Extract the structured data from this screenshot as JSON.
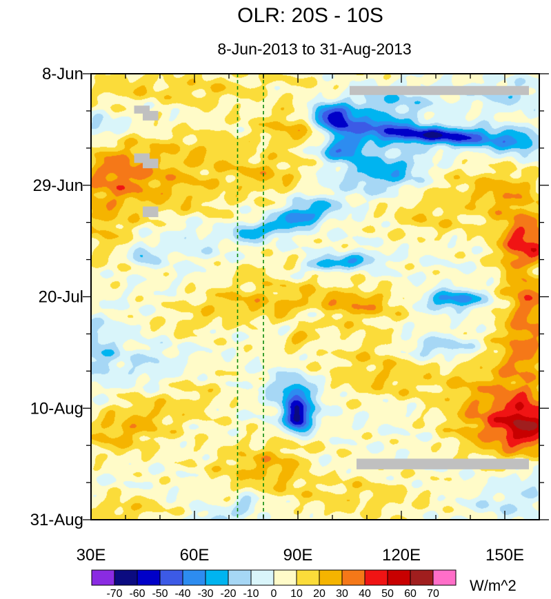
{
  "chart_data": {
    "type": "heatmap",
    "title": "OLR: 20S - 10S",
    "subtitle": "8-Jun-2013 to 31-Aug-2013",
    "x_axis": {
      "range": [
        30,
        160
      ],
      "ticks": [
        30,
        60,
        90,
        120,
        150
      ],
      "tick_labels": [
        "30E",
        "60E",
        "90E",
        "120E",
        "150E"
      ],
      "minor_step": 10
    },
    "y_axis": {
      "range_days_from_8_jun": [
        0,
        84
      ],
      "ticks": [
        0,
        21,
        42,
        63,
        84
      ],
      "tick_labels": [
        "8-Jun",
        "29-Jun",
        "20-Jul",
        "10-Aug",
        "31-Aug"
      ],
      "minor_step": 7,
      "direction": "time increases downward"
    },
    "reference_lines_lon": [
      72.5,
      80
    ],
    "colorbar": {
      "levels": [
        -70,
        -60,
        -50,
        -40,
        -30,
        -20,
        -10,
        0,
        10,
        20,
        30,
        40,
        50,
        60,
        70
      ],
      "tick_labels": [
        "-70",
        "-60",
        "-50",
        "-40",
        "-30",
        "-20",
        "-10",
        "0",
        "10",
        "20",
        "30",
        "40",
        "50",
        "60",
        "70"
      ],
      "colors": [
        "#8a2be2",
        "#0b0b80",
        "#0000c8",
        "#3c5ae6",
        "#2d8cf0",
        "#00b4f0",
        "#a6d7f5",
        "#d9f5fa",
        "#fffbc8",
        "#fbdc3a",
        "#f5b400",
        "#f57818",
        "#f01414",
        "#c80000",
        "#a01e1e",
        "#ff6ec8"
      ],
      "units": "W/m^2"
    },
    "missing_color": "#c0c0c0",
    "missing_regions": [
      {
        "lon": [
          105,
          157
        ],
        "day": [
          2.3,
          4.0
        ]
      },
      {
        "lon": [
          107,
          157
        ],
        "day": [
          72.5,
          74.5
        ]
      },
      {
        "lon": [
          42.5,
          47
        ],
        "day": [
          6,
          7.5
        ]
      },
      {
        "lon": [
          45,
          49.5
        ],
        "day": [
          7,
          8.8
        ]
      },
      {
        "lon": [
          42.5,
          47
        ],
        "day": [
          15,
          16.8
        ]
      },
      {
        "lon": [
          45,
          49.5
        ],
        "day": [
          16,
          17.8
        ]
      },
      {
        "lon": [
          45,
          49.5
        ],
        "day": [
          25,
          27
        ]
      }
    ],
    "features": [
      {
        "lon": 70,
        "day": 1,
        "v": 8,
        "sx": 30,
        "sy": 3
      },
      {
        "lon": 40,
        "day": 3,
        "v": 10,
        "sx": 8,
        "sy": 2
      },
      {
        "lon": 63,
        "day": 4,
        "v": 9,
        "sx": 8,
        "sy": 2
      },
      {
        "lon": 38,
        "day": 18,
        "v": 24,
        "sx": 9,
        "sy": 4
      },
      {
        "lon": 55,
        "day": 22,
        "v": 16,
        "sx": 14,
        "sy": 5
      },
      {
        "lon": 33,
        "day": 28,
        "v": 16,
        "sx": 6,
        "sy": 6
      },
      {
        "lon": 90,
        "day": 10,
        "v": 20,
        "sx": 9,
        "sy": 3
      },
      {
        "lon": 82,
        "day": 19,
        "v": 17,
        "sx": 8,
        "sy": 2.5
      },
      {
        "lon": 62,
        "day": 14,
        "v": 12,
        "sx": 10,
        "sy": 3
      },
      {
        "lon": 150,
        "day": 22,
        "v": 22,
        "sx": 8,
        "sy": 3
      },
      {
        "lon": 128,
        "day": 27,
        "v": 14,
        "sx": 10,
        "sy": 3
      },
      {
        "lon": 155,
        "day": 31,
        "v": 30,
        "sx": 6,
        "sy": 4
      },
      {
        "lon": 157,
        "day": 40,
        "v": 30,
        "sx": 5,
        "sy": 7
      },
      {
        "lon": 85,
        "day": 38,
        "v": 18,
        "sx": 9,
        "sy": 2
      },
      {
        "lon": 95,
        "day": 44,
        "v": 20,
        "sx": 14,
        "sy": 2.5
      },
      {
        "lon": 110,
        "day": 43,
        "v": 14,
        "sx": 8,
        "sy": 2
      },
      {
        "lon": 70,
        "day": 43,
        "v": 14,
        "sx": 9,
        "sy": 2
      },
      {
        "lon": 105,
        "day": 51,
        "v": 15,
        "sx": 12,
        "sy": 2
      },
      {
        "lon": 58,
        "day": 47,
        "v": 10,
        "sx": 8,
        "sy": 2
      },
      {
        "lon": 88,
        "day": 49,
        "v": 16,
        "sx": 5,
        "sy": 2
      },
      {
        "lon": 115,
        "day": 57,
        "v": 17,
        "sx": 12,
        "sy": 3
      },
      {
        "lon": 145,
        "day": 60,
        "v": 18,
        "sx": 10,
        "sy": 5
      },
      {
        "lon": 150,
        "day": 67,
        "v": 28,
        "sx": 10,
        "sy": 4
      },
      {
        "lon": 157,
        "day": 66,
        "v": 32,
        "sx": 5,
        "sy": 4
      },
      {
        "lon": 155,
        "day": 52,
        "v": 22,
        "sx": 6,
        "sy": 5
      },
      {
        "lon": 83,
        "day": 74,
        "v": 22,
        "sx": 13,
        "sy": 3.5
      },
      {
        "lon": 37,
        "day": 68,
        "v": 18,
        "sx": 9,
        "sy": 3
      },
      {
        "lon": 40,
        "day": 82,
        "v": 16,
        "sx": 8,
        "sy": 2
      },
      {
        "lon": 110,
        "day": 80,
        "v": 12,
        "sx": 14,
        "sy": 3
      },
      {
        "lon": 60,
        "day": 60,
        "v": 10,
        "sx": 8,
        "sy": 4
      },
      {
        "lon": 131,
        "day": 20,
        "v": 10,
        "sx": 8,
        "sy": 3
      },
      {
        "lon": 46,
        "day": 64,
        "v": 12,
        "sx": 8,
        "sy": 3
      },
      {
        "lon": 102,
        "day": 9,
        "v": -52,
        "sx": 4,
        "sy": 1.8
      },
      {
        "lon": 97,
        "day": 7.5,
        "v": -38,
        "sx": 3.5,
        "sy": 1.3
      },
      {
        "lon": 113,
        "day": 10,
        "v": -38,
        "sx": 7,
        "sy": 1.3
      },
      {
        "lon": 125,
        "day": 11.5,
        "v": -48,
        "sx": 9,
        "sy": 1.1
      },
      {
        "lon": 140,
        "day": 12,
        "v": -36,
        "sx": 9,
        "sy": 1.4
      },
      {
        "lon": 154,
        "day": 13,
        "v": -28,
        "sx": 5,
        "sy": 1.5
      },
      {
        "lon": 103,
        "day": 14,
        "v": -44,
        "sx": 5,
        "sy": 1.4
      },
      {
        "lon": 116,
        "day": 17,
        "v": -22,
        "sx": 9,
        "sy": 2
      },
      {
        "lon": 115,
        "day": 5.5,
        "v": -22,
        "sx": 10,
        "sy": 2.2
      },
      {
        "lon": 150,
        "day": 4,
        "v": -15,
        "sx": 8,
        "sy": 2
      },
      {
        "lon": 90,
        "day": 27,
        "v": -36,
        "sx": 4,
        "sy": 1.3
      },
      {
        "lon": 83,
        "day": 29,
        "v": -26,
        "sx": 4,
        "sy": 1.2
      },
      {
        "lon": 75,
        "day": 30,
        "v": -28,
        "sx": 3,
        "sy": 1.2
      },
      {
        "lon": 96,
        "day": 25,
        "v": -22,
        "sx": 5,
        "sy": 1.5
      },
      {
        "lon": 115,
        "day": 20,
        "v": -18,
        "sx": 10,
        "sy": 2
      },
      {
        "lon": 97,
        "day": 36,
        "v": -30,
        "sx": 4,
        "sy": 1
      },
      {
        "lon": 107,
        "day": 35,
        "v": -28,
        "sx": 5,
        "sy": 1
      },
      {
        "lon": 86,
        "day": 38,
        "v": -20,
        "sx": 4,
        "sy": 1
      },
      {
        "lon": 135,
        "day": 42.5,
        "v": -40,
        "sx": 6,
        "sy": 1.2
      },
      {
        "lon": 158,
        "day": 37,
        "v": -30,
        "sx": 2.5,
        "sy": 1.2
      },
      {
        "lon": 94,
        "day": 45.5,
        "v": -25,
        "sx": 4,
        "sy": 1
      },
      {
        "lon": 85,
        "day": 48.5,
        "v": -25,
        "sx": 3,
        "sy": 1
      },
      {
        "lon": 130,
        "day": 51.5,
        "v": -22,
        "sx": 8,
        "sy": 1.5
      },
      {
        "lon": 100,
        "day": 51,
        "v": -15,
        "sx": 6,
        "sy": 1.3
      },
      {
        "lon": 90,
        "day": 65,
        "v": -60,
        "sx": 2.5,
        "sy": 1.8
      },
      {
        "lon": 90,
        "day": 61.5,
        "v": -32,
        "sx": 4,
        "sy": 2.5
      },
      {
        "lon": 87,
        "day": 59,
        "v": -15,
        "sx": 5,
        "sy": 2
      },
      {
        "lon": 96,
        "day": 74,
        "v": -12,
        "sx": 5,
        "sy": 2
      },
      {
        "lon": 75,
        "day": 81,
        "v": -22,
        "sx": 3,
        "sy": 1.2
      },
      {
        "lon": 66,
        "day": 84,
        "v": -20,
        "sx": 4,
        "sy": 1
      },
      {
        "lon": 45,
        "day": 34,
        "v": -25,
        "sx": 2.5,
        "sy": 1.2
      },
      {
        "lon": 32,
        "day": 10,
        "v": -16,
        "sx": 5,
        "sy": 1.5
      },
      {
        "lon": 32,
        "day": 52,
        "v": -18,
        "sx": 4,
        "sy": 4
      },
      {
        "lon": 48,
        "day": 55,
        "v": -12,
        "sx": 8,
        "sy": 3
      },
      {
        "lon": 58,
        "day": 31,
        "v": -12,
        "sx": 7,
        "sy": 3
      },
      {
        "lon": 150,
        "day": 81,
        "v": -10,
        "sx": 8,
        "sy": 2
      },
      {
        "lon": 157,
        "day": 75,
        "v": -12,
        "sx": 4,
        "sy": 3
      }
    ]
  }
}
